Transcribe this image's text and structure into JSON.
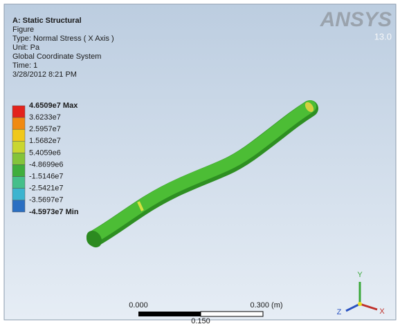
{
  "header": {
    "title": "A: Static Structural",
    "lines": [
      "Figure",
      "Type: Normal Stress ( X Axis )",
      "Unit: Pa",
      "Global Coordinate System",
      "Time: 1",
      "3/28/2012 8:21 PM"
    ]
  },
  "logo": {
    "brand": "ANSYS",
    "version": "13.0"
  },
  "legend": {
    "labels": [
      "4.6509e7 Max",
      "3.6233e7",
      "2.5957e7",
      "1.5682e7",
      "5.4059e6",
      "-4.8699e6",
      "-1.5146e7",
      "-2.5421e7",
      "-3.5697e7",
      "-4.5973e7 Min"
    ],
    "colors": [
      "#e3231c",
      "#f08a12",
      "#f0c81c",
      "#c9d630",
      "#84c43a",
      "#3fae3c",
      "#44bf8a",
      "#3cb4cf",
      "#2a6fc2"
    ]
  },
  "scale_bar": {
    "left": "0.000",
    "right": "0.300 (m)",
    "middle": "0.150"
  },
  "triad": {
    "y": "Y",
    "z": "Z",
    "x": "X"
  }
}
